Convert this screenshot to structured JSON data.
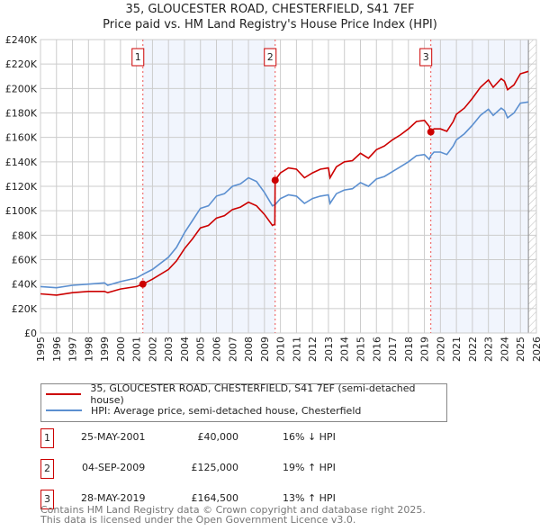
{
  "chart_data": {
    "type": "line",
    "title": "35, GLOUCESTER ROAD, CHESTERFIELD, S41 7EF",
    "subtitle": "Price paid vs. HM Land Registry's House Price Index (HPI)",
    "xlim": [
      1995,
      2026
    ],
    "ylim": [
      0,
      240000
    ],
    "x_ticks": [
      "1995",
      "1996",
      "1997",
      "1998",
      "1999",
      "2000",
      "2001",
      "2002",
      "2003",
      "2004",
      "2005",
      "2006",
      "2007",
      "2008",
      "2009",
      "2010",
      "2011",
      "2012",
      "2013",
      "2014",
      "2015",
      "2016",
      "2017",
      "2018",
      "2019",
      "2020",
      "2021",
      "2022",
      "2023",
      "2024",
      "2025",
      "2026"
    ],
    "y_ticks": [
      {
        "v": 0,
        "label": "£0"
      },
      {
        "v": 20000,
        "label": "£20K"
      },
      {
        "v": 40000,
        "label": "£40K"
      },
      {
        "v": 60000,
        "label": "£60K"
      },
      {
        "v": 80000,
        "label": "£80K"
      },
      {
        "v": 100000,
        "label": "£100K"
      },
      {
        "v": 120000,
        "label": "£120K"
      },
      {
        "v": 140000,
        "label": "£140K"
      },
      {
        "v": 160000,
        "label": "£160K"
      },
      {
        "v": 180000,
        "label": "£180K"
      },
      {
        "v": 200000,
        "label": "£200K"
      },
      {
        "v": 220000,
        "label": "£220K"
      },
      {
        "v": 240000,
        "label": "£240K"
      }
    ],
    "grid": true,
    "forecast_start": 2025.5,
    "x": [
      1995,
      1996,
      1997,
      1998,
      1999,
      1999.2,
      2000,
      2001,
      2001.4,
      2002,
      2003,
      2003.5,
      2004,
      2004.5,
      2005,
      2005.5,
      2006,
      2006.5,
      2007,
      2007.5,
      2008,
      2008.5,
      2009,
      2009.5,
      2009.65,
      2009.67,
      2010,
      2010.5,
      2011,
      2011.5,
      2012,
      2012.5,
      2013,
      2013.1,
      2013.5,
      2014,
      2014.5,
      2015,
      2015.5,
      2016,
      2016.5,
      2017,
      2017.5,
      2018,
      2018.5,
      2019,
      2019.3,
      2019.4,
      2019.6,
      2020,
      2020.4,
      2020.8,
      2021,
      2021.5,
      2022,
      2022.5,
      2023,
      2023.3,
      2023.8,
      2024,
      2024.2,
      2024.6,
      2025,
      2025.5
    ],
    "series": [
      {
        "name": "35, GLOUCESTER ROAD, CHESTERFIELD, S41 7EF (semi-detached house)",
        "color": "#cc0000",
        "values": [
          32,
          31,
          33,
          34,
          34,
          33,
          36,
          38,
          40,
          44,
          52,
          59,
          69,
          77,
          86,
          88,
          94,
          96,
          101,
          103,
          107,
          104,
          97,
          88,
          89,
          125,
          131,
          135,
          134,
          127,
          131,
          134,
          135,
          127,
          136,
          140,
          141,
          147,
          143,
          150,
          153,
          158,
          162,
          167,
          173,
          174,
          169,
          164.5,
          167,
          167,
          165,
          173,
          179,
          184,
          192,
          201,
          207,
          201,
          208,
          206,
          199,
          203,
          212,
          214
        ]
      },
      {
        "name": "HPI: Average price, semi-detached house, Chesterfield",
        "color": "#5b8fd0",
        "values": [
          38,
          37,
          39,
          40,
          41,
          39,
          42,
          45,
          48,
          52,
          62,
          70,
          82,
          92,
          102,
          104,
          112,
          114,
          120,
          122,
          127,
          124,
          115,
          104,
          105,
          105,
          110,
          113,
          112,
          106,
          110,
          112,
          113,
          106,
          114,
          117,
          118,
          123,
          120,
          126,
          128,
          132,
          136,
          140,
          145,
          146,
          142,
          145,
          148,
          148,
          146,
          153,
          158,
          163,
          170,
          178,
          183,
          178,
          184,
          182,
          176,
          180,
          188,
          189
        ]
      }
    ],
    "value_unit": "thousand GBP",
    "sales": [
      {
        "id": "1",
        "x": 2001.4,
        "value": 40000
      },
      {
        "id": "2",
        "x": 2009.67,
        "value": 125000
      },
      {
        "id": "3",
        "x": 2019.4,
        "value": 164500
      }
    ]
  },
  "legend": {
    "red_label": "35, GLOUCESTER ROAD, CHESTERFIELD, S41 7EF (semi-detached house)",
    "blue_label": "HPI: Average price, semi-detached house, Chesterfield"
  },
  "transactions": [
    {
      "num": "1",
      "date": "25-MAY-2001",
      "price": "£40,000",
      "hpi": "16% ↓ HPI"
    },
    {
      "num": "2",
      "date": "04-SEP-2009",
      "price": "£125,000",
      "hpi": "19% ↑ HPI"
    },
    {
      "num": "3",
      "date": "28-MAY-2019",
      "price": "£164,500",
      "hpi": "13% ↑ HPI"
    }
  ],
  "footer": {
    "line1": "Contains HM Land Registry data © Crown copyright and database right 2025.",
    "line2": "This data is licensed under the Open Government Licence v3.0."
  }
}
